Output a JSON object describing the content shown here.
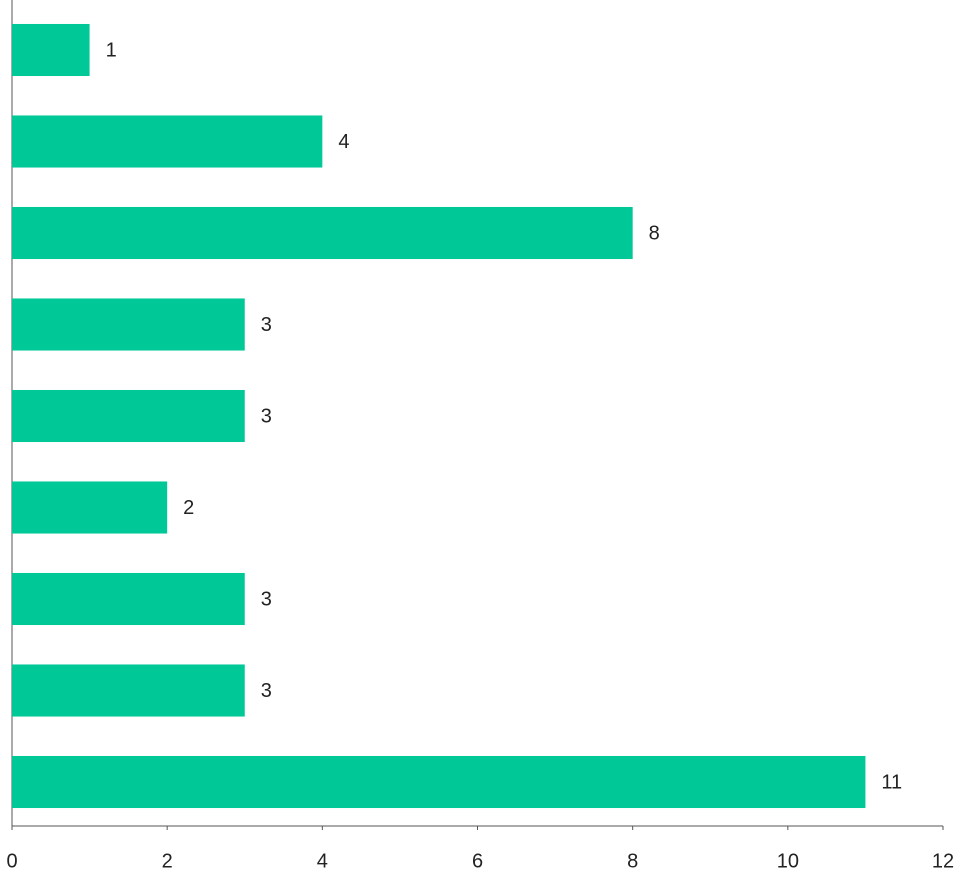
{
  "chart_data": {
    "type": "bar",
    "orientation": "horizontal",
    "categories": [
      null,
      null,
      null,
      null,
      null,
      null,
      null,
      null,
      null
    ],
    "values": [
      1,
      4,
      8,
      3,
      3,
      2,
      3,
      3,
      11
    ],
    "color": "#00c896",
    "xlim": [
      0,
      12
    ],
    "xticks": [
      0,
      2,
      4,
      6,
      8,
      10,
      12
    ],
    "grid": false
  }
}
